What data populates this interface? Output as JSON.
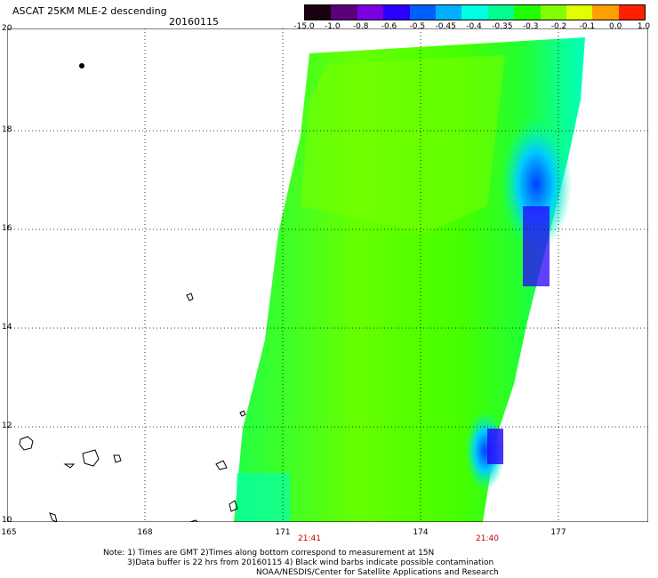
{
  "title": "ASCAT 25KM MLE-2 descending",
  "date": "20160115",
  "colorbar": {
    "labels": [
      "-15.0",
      "-1.0",
      "-0.8",
      "-0.6",
      "-0.5",
      "-0.45",
      "-0.4",
      "-0.35",
      "-0.3",
      "-0.2",
      "-0.1",
      "0.0",
      "1.0"
    ],
    "colors": [
      "#1a0010",
      "#5a007a",
      "#7e00e0",
      "#2a00ff",
      "#0060ff",
      "#00b0ff",
      "#00ffe0",
      "#00ff90",
      "#20ff00",
      "#80ff00",
      "#e0ff00",
      "#ffa000",
      "#ff2000"
    ]
  },
  "map": {
    "lat_labels": [
      "20",
      "18",
      "16",
      "14",
      "12",
      "10"
    ],
    "lon_labels": [
      "165",
      "168",
      "171",
      "174",
      "177"
    ],
    "time_labels": [
      "21:41",
      "21:40"
    ]
  },
  "notes": {
    "line1": "Note: 1) Times are GMT 2)Times along bottom correspond to measurement at 15N",
    "line2": "3)Data buffer is 22 hrs from 20160115 4) Black wind barbs indicate possible contamination",
    "line3": "NOAA/NESDIS/Center for Satellite Applications and Research"
  }
}
